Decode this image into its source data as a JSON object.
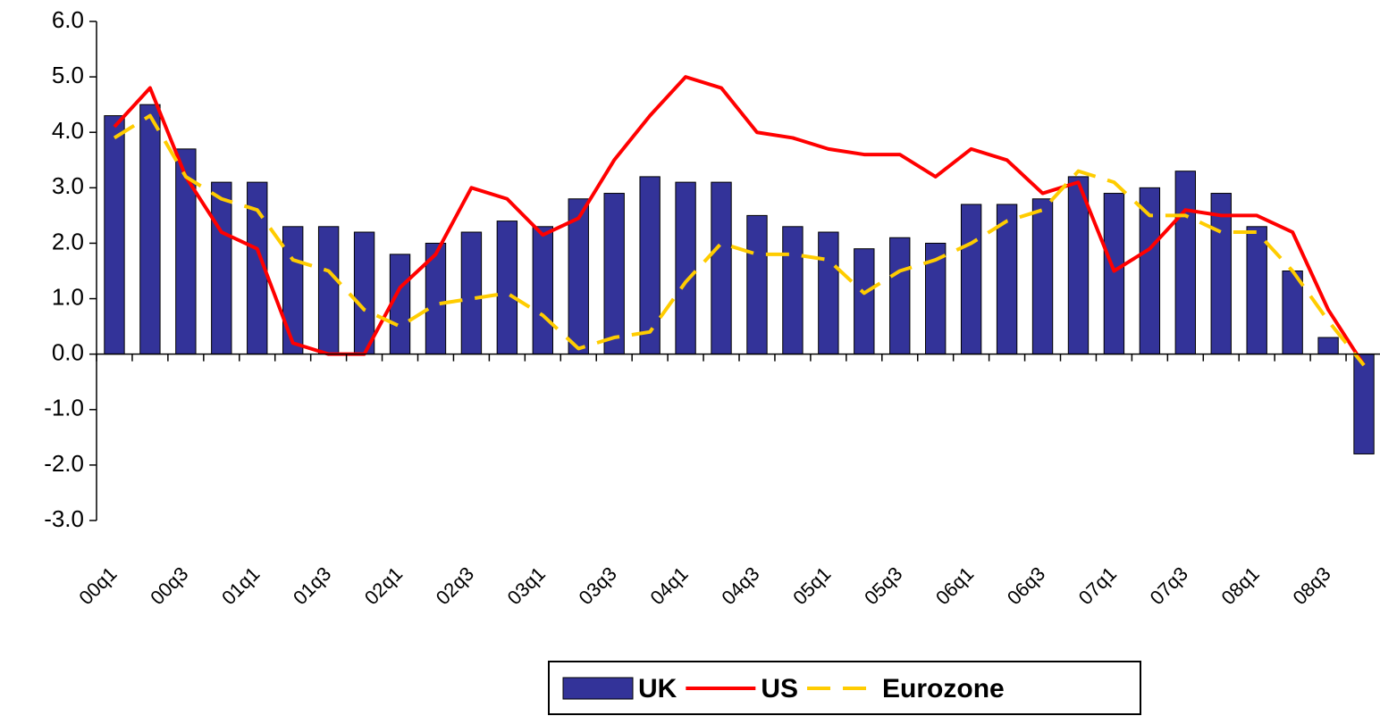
{
  "chart_data": {
    "type": "bar",
    "categories": [
      "00q1",
      null,
      "00q3",
      null,
      "01q1",
      null,
      "01q3",
      null,
      "02q1",
      null,
      "02q3",
      null,
      "03q1",
      null,
      "03q3",
      null,
      "04q1",
      null,
      "04q3",
      null,
      "05q1",
      null,
      "05q3",
      null,
      "06q1",
      null,
      "06q3",
      null,
      "07q1",
      null,
      "07q3",
      null,
      "08q1",
      null,
      "08q3",
      null
    ],
    "series": [
      {
        "name": "UK",
        "type": "bar",
        "color": "#333399",
        "values": [
          4.3,
          4.5,
          3.7,
          3.1,
          3.1,
          2.3,
          2.3,
          2.2,
          1.8,
          2.0,
          2.2,
          2.4,
          2.3,
          2.8,
          2.9,
          3.2,
          3.1,
          3.1,
          2.5,
          2.3,
          2.2,
          1.9,
          2.1,
          2.0,
          2.7,
          2.7,
          2.8,
          3.2,
          2.9,
          3.0,
          3.3,
          2.9,
          2.3,
          1.5,
          0.3,
          -1.8
        ]
      },
      {
        "name": "US",
        "type": "line",
        "color": "#ff0000",
        "values": [
          4.1,
          4.8,
          3.2,
          2.2,
          1.9,
          0.2,
          0.0,
          0.0,
          1.2,
          1.8,
          3.0,
          2.8,
          2.15,
          2.45,
          3.5,
          4.3,
          5.0,
          4.8,
          4.0,
          3.9,
          3.7,
          3.6,
          3.6,
          3.2,
          3.7,
          3.5,
          2.9,
          3.1,
          1.5,
          1.9,
          2.6,
          2.5,
          2.5,
          2.2,
          0.8,
          -0.2
        ]
      },
      {
        "name": "Eurozone",
        "type": "dashed-line",
        "color": "#ffcc00",
        "values": [
          3.9,
          4.3,
          3.2,
          2.8,
          2.6,
          1.7,
          1.5,
          0.8,
          0.5,
          0.9,
          1.0,
          1.1,
          0.7,
          0.1,
          0.3,
          0.4,
          1.3,
          2.0,
          1.8,
          1.8,
          1.7,
          1.1,
          1.5,
          1.7,
          2.0,
          2.4,
          2.6,
          3.3,
          3.1,
          2.5,
          2.5,
          2.2,
          2.2,
          1.5,
          0.6,
          -0.2
        ]
      }
    ],
    "ylim": [
      -3,
      6
    ],
    "yticks": [
      {
        "value": -3,
        "label": "-3.0"
      },
      {
        "value": -2,
        "label": "-2.0"
      },
      {
        "value": -1,
        "label": "-1.0"
      },
      {
        "value": 0,
        "label": "0.0"
      },
      {
        "value": 1,
        "label": "1.0"
      },
      {
        "value": 2,
        "label": "2.0"
      },
      {
        "value": 3,
        "label": "3.0"
      },
      {
        "value": 4,
        "label": "4.0"
      },
      {
        "value": 5,
        "label": "5.0"
      },
      {
        "value": 6,
        "label": "6.0"
      }
    ],
    "grid": false,
    "legend": "bottom"
  }
}
